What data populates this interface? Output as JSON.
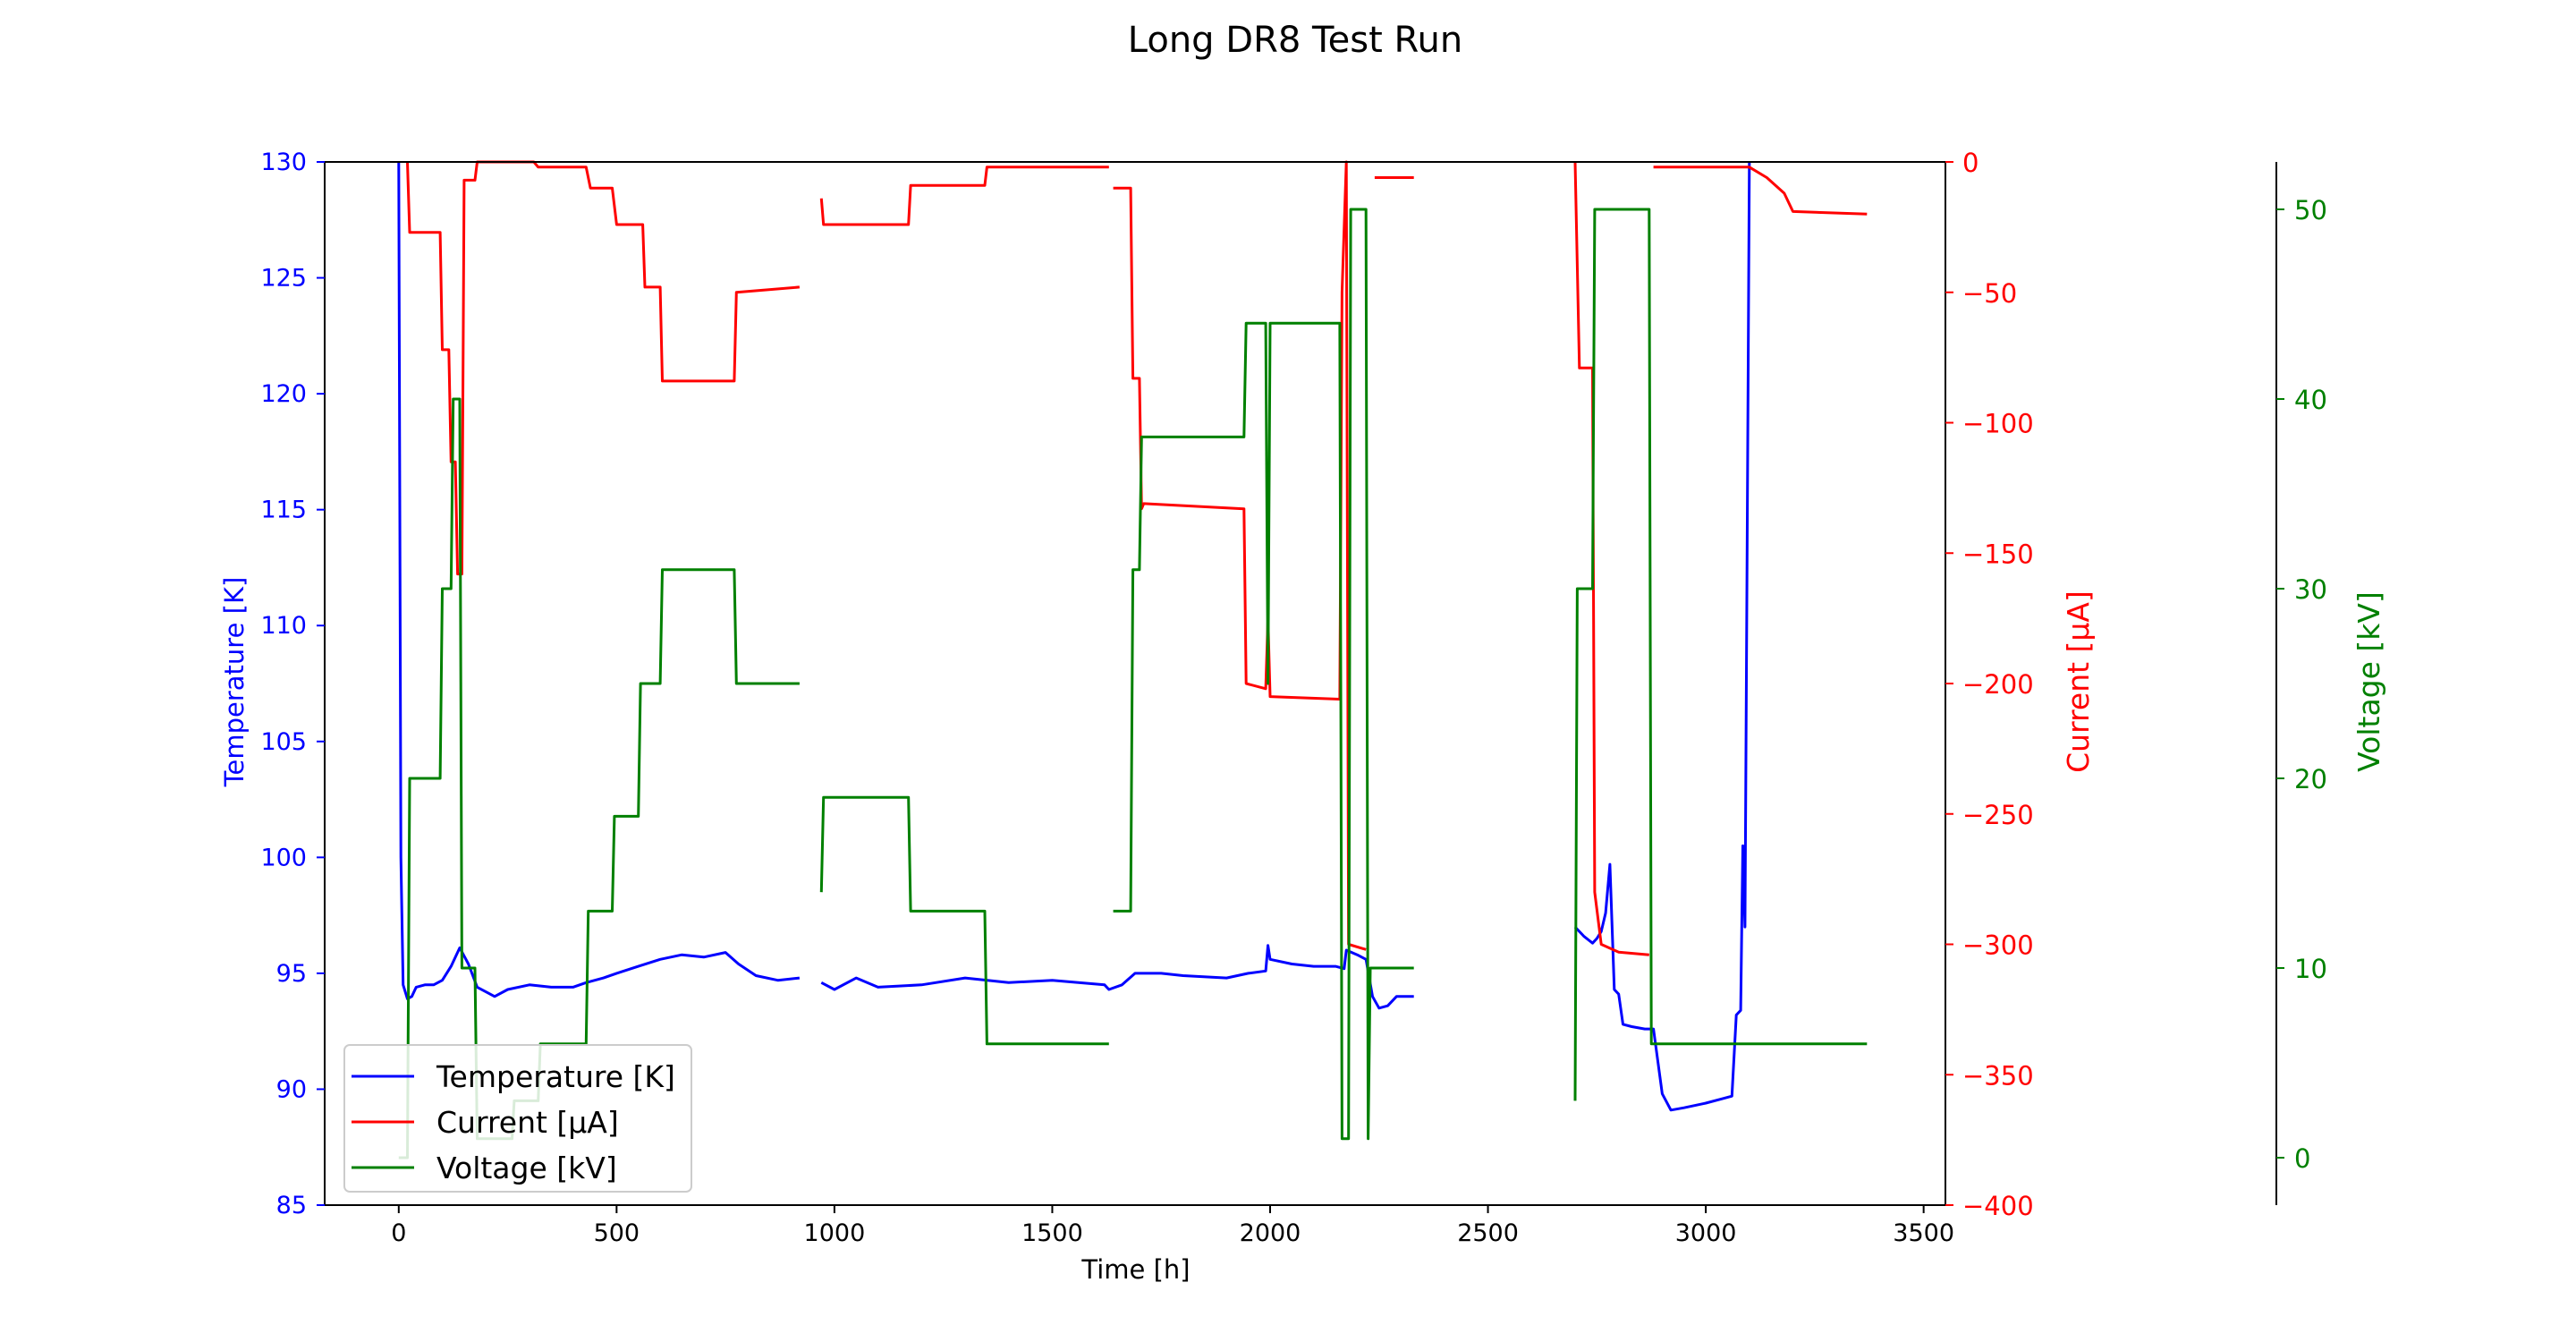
{
  "chart_data": {
    "type": "line",
    "title": "Long DR8 Test Run",
    "xlabel": "Time [h]",
    "xlim": [
      -170,
      3550
    ],
    "xticks": [
      0,
      500,
      1000,
      1500,
      2000,
      2500,
      3000,
      3500
    ],
    "axes": {
      "temperature": {
        "label": "Temperature [K]",
        "color": "#0000ff",
        "ylim": [
          85,
          130
        ],
        "ticks": [
          85,
          90,
          95,
          100,
          105,
          110,
          115,
          120,
          125,
          130
        ]
      },
      "current": {
        "label": "Current [μA]",
        "color": "#ff0000",
        "ylim": [
          -400,
          0
        ],
        "ticks": [
          -400,
          -350,
          -300,
          -250,
          -200,
          -150,
          -100,
          -50,
          0
        ]
      },
      "voltage": {
        "label": "Voltage [kV]",
        "color": "#008000",
        "ylim": [
          -2.5,
          52.5
        ],
        "ticks": [
          0,
          10,
          20,
          30,
          40,
          50
        ]
      }
    },
    "legend": {
      "placement": "lower-left",
      "entries": [
        "Temperature [K]",
        "Current [μA]",
        "Voltage [kV]"
      ]
    },
    "series": [
      {
        "name": "Temperature [K]",
        "axis": "temperature",
        "color": "#0000ff",
        "segments": [
          [
            [
              0,
              130
            ],
            [
              5,
              100
            ],
            [
              10,
              94.5
            ],
            [
              20,
              93.9
            ],
            [
              30,
              94.0
            ],
            [
              40,
              94.4
            ],
            [
              60,
              94.5
            ],
            [
              80,
              94.5
            ],
            [
              100,
              94.7
            ],
            [
              120,
              95.3
            ],
            [
              140,
              96.1
            ],
            [
              160,
              95.4
            ],
            [
              180,
              94.4
            ],
            [
              200,
              94.2
            ],
            [
              220,
              94.0
            ],
            [
              250,
              94.3
            ],
            [
              300,
              94.5
            ],
            [
              350,
              94.4
            ],
            [
              400,
              94.4
            ],
            [
              430,
              94.6
            ],
            [
              470,
              94.8
            ],
            [
              500,
              95.0
            ],
            [
              550,
              95.3
            ],
            [
              600,
              95.6
            ],
            [
              650,
              95.8
            ],
            [
              700,
              95.7
            ],
            [
              750,
              95.9
            ],
            [
              780,
              95.4
            ],
            [
              820,
              94.9
            ],
            [
              870,
              94.7
            ],
            [
              920,
              94.8
            ]
          ],
          [
            [
              970,
              94.6
            ],
            [
              1000,
              94.3
            ],
            [
              1050,
              94.8
            ],
            [
              1100,
              94.4
            ],
            [
              1200,
              94.5
            ],
            [
              1300,
              94.8
            ],
            [
              1400,
              94.6
            ],
            [
              1500,
              94.7
            ],
            [
              1560,
              94.6
            ],
            [
              1620,
              94.5
            ],
            [
              1630,
              94.3
            ],
            [
              1660,
              94.5
            ],
            [
              1690,
              95.0
            ],
            [
              1750,
              95.0
            ],
            [
              1800,
              94.9
            ],
            [
              1900,
              94.8
            ],
            [
              1950,
              95.0
            ],
            [
              1990,
              95.1
            ],
            [
              1995,
              96.2
            ],
            [
              2000,
              95.6
            ],
            [
              2050,
              95.4
            ],
            [
              2100,
              95.3
            ],
            [
              2150,
              95.3
            ],
            [
              2170,
              95.2
            ],
            [
              2175,
              96.0
            ],
            [
              2200,
              95.8
            ],
            [
              2220,
              95.6
            ],
            [
              2235,
              94.0
            ],
            [
              2250,
              93.5
            ],
            [
              2270,
              93.6
            ],
            [
              2290,
              94.0
            ],
            [
              2330,
              94.0
            ]
          ],
          [
            [
              2700,
              97.0
            ],
            [
              2720,
              96.6
            ],
            [
              2740,
              96.3
            ],
            [
              2750,
              96.5
            ],
            [
              2760,
              96.8
            ],
            [
              2770,
              97.6
            ],
            [
              2780,
              99.7
            ],
            [
              2790,
              94.3
            ],
            [
              2800,
              94.1
            ],
            [
              2810,
              92.8
            ],
            [
              2830,
              92.7
            ],
            [
              2860,
              92.6
            ],
            [
              2880,
              92.6
            ],
            [
              2900,
              89.8
            ],
            [
              2920,
              89.1
            ],
            [
              2950,
              89.2
            ],
            [
              3000,
              89.4
            ],
            [
              3040,
              89.6
            ],
            [
              3060,
              89.7
            ],
            [
              3070,
              93.2
            ],
            [
              3080,
              93.4
            ],
            [
              3085,
              100.5
            ],
            [
              3090,
              97.0
            ],
            [
              3100,
              130
            ]
          ]
        ]
      },
      {
        "name": "Current [μA]",
        "axis": "current",
        "color": "#ff0000",
        "segments": [
          [
            [
              20,
              0
            ],
            [
              25,
              -27
            ],
            [
              95,
              -27
            ],
            [
              100,
              -72
            ],
            [
              115,
              -72
            ],
            [
              120,
              -115
            ],
            [
              130,
              -115
            ],
            [
              135,
              -158
            ],
            [
              145,
              -158
            ],
            [
              150,
              -7
            ],
            [
              175,
              -7
            ],
            [
              180,
              0
            ],
            [
              310,
              0
            ],
            [
              320,
              -2
            ],
            [
              430,
              -2
            ],
            [
              440,
              -10
            ],
            [
              490,
              -10
            ],
            [
              500,
              -24
            ],
            [
              560,
              -24
            ],
            [
              565,
              -48
            ],
            [
              600,
              -48
            ],
            [
              605,
              -84
            ],
            [
              770,
              -84
            ],
            [
              775,
              -50
            ],
            [
              920,
              -48
            ]
          ],
          [
            [
              970,
              -14
            ],
            [
              975,
              -24
            ],
            [
              1170,
              -24
            ],
            [
              1175,
              -9
            ],
            [
              1345,
              -9
            ],
            [
              1350,
              -2
            ],
            [
              1630,
              -2
            ]
          ],
          [
            [
              1640,
              -10
            ],
            [
              1680,
              -10
            ],
            [
              1685,
              -83
            ],
            [
              1700,
              -83
            ],
            [
              1705,
              -133
            ],
            [
              1710,
              -131
            ],
            [
              1940,
              -133
            ],
            [
              1945,
              -200
            ],
            [
              1990,
              -202
            ],
            [
              1995,
              -175
            ],
            [
              2000,
              -205
            ],
            [
              2160,
              -206
            ],
            [
              2165,
              -50
            ],
            [
              2175,
              0
            ],
            [
              2180,
              -300
            ],
            [
              2220,
              -302
            ]
          ],
          [
            [
              2240,
              -6
            ],
            [
              2330,
              -6
            ]
          ],
          [
            [
              2700,
              0
            ],
            [
              2710,
              -79
            ],
            [
              2740,
              -79
            ],
            [
              2745,
              -280
            ],
            [
              2760,
              -300
            ],
            [
              2800,
              -303
            ],
            [
              2870,
              -304
            ]
          ],
          [
            [
              2880,
              -2
            ],
            [
              3100,
              -2
            ],
            [
              3140,
              -6
            ],
            [
              3180,
              -12
            ],
            [
              3200,
              -19
            ],
            [
              3370,
              -20
            ]
          ]
        ]
      },
      {
        "name": "Voltage [kV]",
        "axis": "voltage",
        "color": "#008000",
        "segments": [
          [
            [
              0,
              0
            ],
            [
              20,
              0
            ],
            [
              25,
              20
            ],
            [
              95,
              20
            ],
            [
              100,
              30
            ],
            [
              120,
              30
            ],
            [
              125,
              40
            ],
            [
              140,
              40
            ],
            [
              145,
              10
            ],
            [
              175,
              10
            ],
            [
              180,
              1
            ],
            [
              260,
              1
            ],
            [
              265,
              3
            ],
            [
              320,
              3
            ],
            [
              325,
              6
            ],
            [
              430,
              6
            ],
            [
              435,
              13
            ],
            [
              490,
              13
            ],
            [
              495,
              18
            ],
            [
              550,
              18
            ],
            [
              555,
              25
            ],
            [
              600,
              25
            ],
            [
              605,
              31
            ],
            [
              770,
              31
            ],
            [
              775,
              25
            ],
            [
              920,
              25
            ]
          ],
          [
            [
              970,
              14
            ],
            [
              975,
              19
            ],
            [
              1170,
              19
            ],
            [
              1175,
              13
            ],
            [
              1345,
              13
            ],
            [
              1350,
              6
            ],
            [
              1630,
              6
            ]
          ],
          [
            [
              1640,
              13
            ],
            [
              1680,
              13
            ],
            [
              1685,
              31
            ],
            [
              1700,
              31
            ],
            [
              1705,
              38
            ],
            [
              1940,
              38
            ],
            [
              1945,
              44
            ],
            [
              1990,
              44
            ],
            [
              1995,
              25
            ],
            [
              2000,
              44
            ],
            [
              2160,
              44
            ],
            [
              2165,
              1
            ],
            [
              2180,
              1
            ],
            [
              2185,
              50
            ],
            [
              2220,
              50
            ],
            [
              2225,
              1
            ],
            [
              2230,
              10
            ],
            [
              2330,
              10
            ]
          ],
          [
            [
              2700,
              3
            ],
            [
              2705,
              30
            ],
            [
              2740,
              30
            ],
            [
              2745,
              50
            ],
            [
              2870,
              50
            ],
            [
              2875,
              6
            ],
            [
              3370,
              6
            ]
          ]
        ]
      }
    ]
  }
}
